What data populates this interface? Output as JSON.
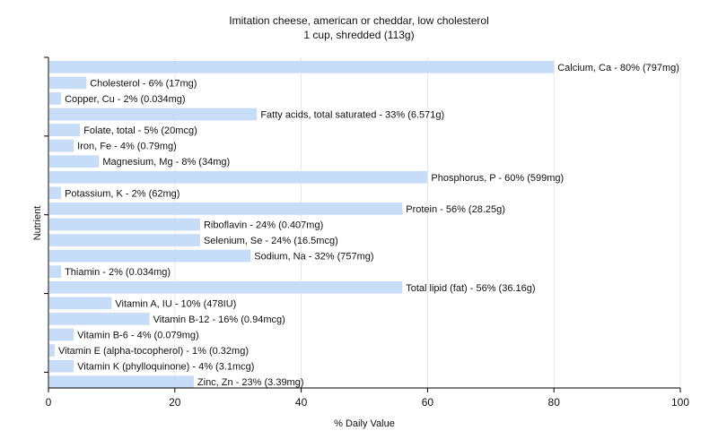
{
  "chart_data": {
    "type": "bar",
    "orientation": "horizontal",
    "title": "Imitation cheese, american or cheddar, low cholesterol",
    "subtitle": "1 cup, shredded (113g)",
    "xlabel": "% Daily Value",
    "ylabel": "Nutrient",
    "xlim": [
      0,
      100
    ],
    "xticks": [
      0,
      20,
      40,
      60,
      80,
      100
    ],
    "grid": true,
    "bar_color": "#c6dcf7",
    "categories": [
      "Calcium, Ca",
      "Cholesterol",
      "Copper, Cu",
      "Fatty acids, total saturated",
      "Folate, total",
      "Iron, Fe",
      "Magnesium, Mg",
      "Phosphorus, P",
      "Potassium, K",
      "Protein",
      "Riboflavin",
      "Selenium, Se",
      "Sodium, Na",
      "Thiamin",
      "Total lipid (fat)",
      "Vitamin A, IU",
      "Vitamin B-12",
      "Vitamin B-6",
      "Vitamin E (alpha-tocopherol)",
      "Vitamin K (phylloquinone)",
      "Zinc, Zn"
    ],
    "values": [
      80,
      6,
      2,
      33,
      5,
      4,
      8,
      60,
      2,
      56,
      24,
      24,
      32,
      2,
      56,
      10,
      16,
      4,
      1,
      4,
      23
    ],
    "labels": [
      "Calcium, Ca - 80% (797mg)",
      "Cholesterol - 6% (17mg)",
      "Copper, Cu - 2% (0.034mg)",
      "Fatty acids, total saturated - 33% (6.571g)",
      "Folate, total - 5% (20mcg)",
      "Iron, Fe - 4% (0.79mg)",
      "Magnesium, Mg - 8% (34mg)",
      "Phosphorus, P - 60% (599mg)",
      "Potassium, K - 2% (62mg)",
      "Protein - 56% (28.25g)",
      "Riboflavin - 24% (0.407mg)",
      "Selenium, Se - 24% (16.5mcg)",
      "Sodium, Na - 32% (757mg)",
      "Thiamin - 2% (0.034mg)",
      "Total lipid (fat) - 56% (36.16g)",
      "Vitamin A, IU - 10% (478IU)",
      "Vitamin B-12 - 16% (0.94mcg)",
      "Vitamin B-6 - 4% (0.079mg)",
      "Vitamin E (alpha-tocopherol) - 1% (0.32mg)",
      "Vitamin K (phylloquinone) - 4% (3.1mcg)",
      "Zinc, Zn - 23% (3.39mg)"
    ]
  }
}
